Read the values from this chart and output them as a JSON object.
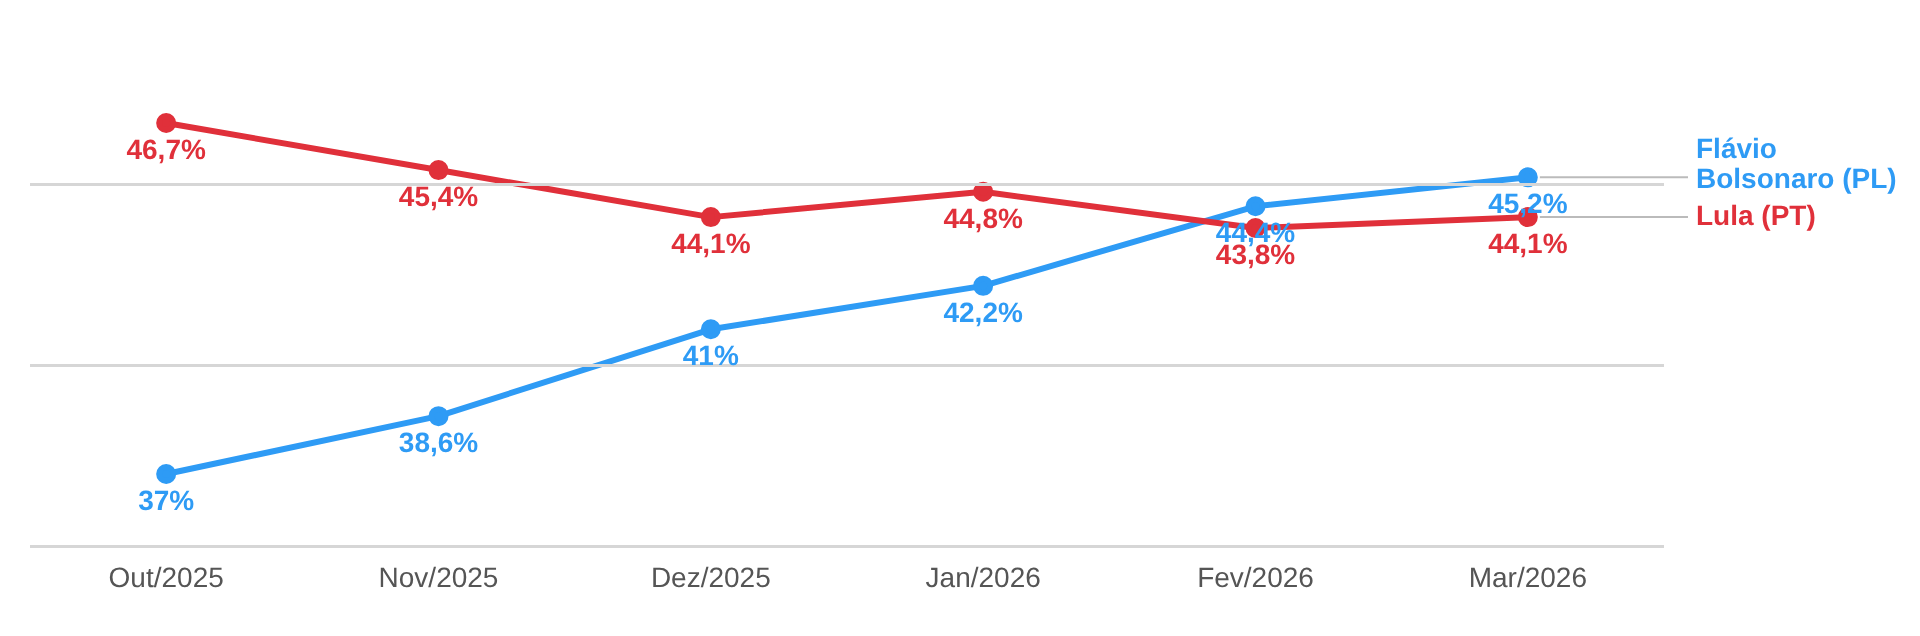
{
  "chart_data": {
    "type": "line",
    "categories": [
      "Out/2025",
      "Nov/2025",
      "Dez/2025",
      "Jan/2026",
      "Fev/2026",
      "Mar/2026"
    ],
    "series": [
      {
        "name": "Lula (PT)",
        "color": "#e0303a",
        "values": [
          46.7,
          45.4,
          44.1,
          44.8,
          43.8,
          44.1
        ],
        "value_labels": [
          "46,7%",
          "45,4%",
          "44,1%",
          "44,8%",
          "43,8%",
          "44,1%"
        ]
      },
      {
        "name": "Flávio Bolsonaro (PL)",
        "color": "#2e9bf5",
        "values": [
          37,
          38.6,
          41,
          42.2,
          44.4,
          45.2
        ],
        "value_labels": [
          "37%",
          "38,6%",
          "41%",
          "42,2%",
          "44,4%",
          "45,2%"
        ]
      }
    ],
    "ref_lines": [
      {
        "axis": "y",
        "value": 35,
        "color": "#d6d6d6"
      },
      {
        "axis": "y",
        "value": 40,
        "color": "#d6d6d6"
      },
      {
        "axis": "y",
        "value": 45,
        "color": "#d6d6d6"
      }
    ],
    "tick_labels": "x",
    "legend": false,
    "marker": "circle",
    "line_style": "solid"
  }
}
